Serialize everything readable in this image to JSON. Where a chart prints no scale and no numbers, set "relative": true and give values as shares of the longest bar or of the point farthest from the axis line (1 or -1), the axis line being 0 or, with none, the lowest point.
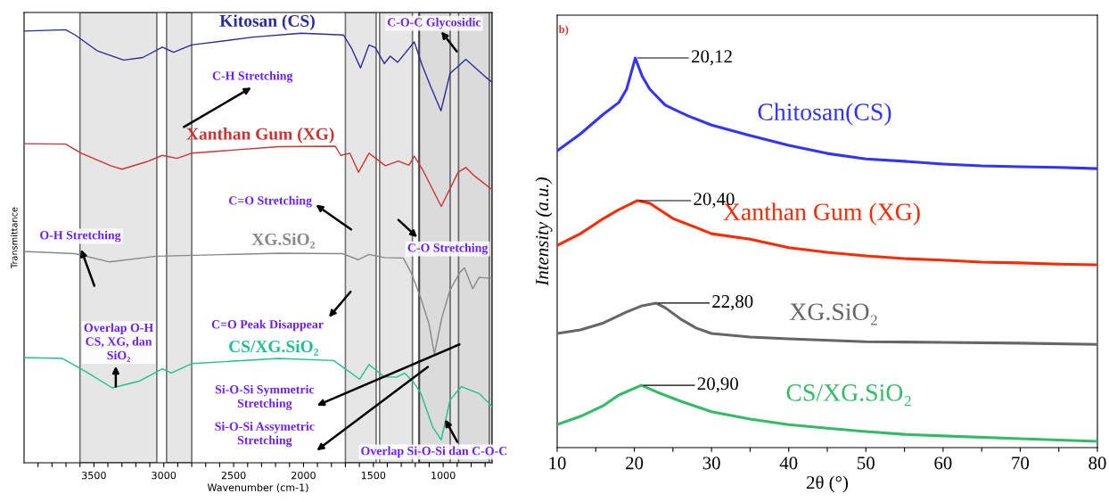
{
  "chart_data": [
    {
      "type": "line",
      "relative": true,
      "xlabel": "Wavenumber (cm-1)",
      "ylabel": "Transmittance",
      "xlim": [
        4000,
        650
      ],
      "xticks": [
        {
          "value": 3900,
          "label": null
        },
        {
          "value": 3800,
          "label": null
        },
        {
          "value": 3700,
          "label": null
        },
        {
          "value": 3600,
          "label": null
        },
        3500,
        {
          "value": 3400,
          "label": null
        },
        {
          "value": 3300,
          "label": null
        },
        {
          "value": 3200,
          "label": null
        },
        {
          "value": 3100,
          "label": null
        },
        3000,
        {
          "value": 2900,
          "label": null
        },
        {
          "value": 2800,
          "label": null
        },
        {
          "value": 2700,
          "label": null
        },
        {
          "value": 2600,
          "label": null
        },
        2500,
        {
          "value": 2400,
          "label": null
        },
        {
          "value": 2300,
          "label": null
        },
        {
          "value": 2200,
          "label": null
        },
        {
          "value": 2100,
          "label": null
        },
        2000,
        {
          "value": 1900,
          "label": null
        },
        {
          "value": 1800,
          "label": null
        },
        {
          "value": 1700,
          "label": null
        },
        {
          "value": 1600,
          "label": null
        },
        1500,
        {
          "value": 1400,
          "label": null
        },
        {
          "value": 1300,
          "label": null
        },
        {
          "value": 1200,
          "label": null
        },
        {
          "value": 1100,
          "label": null
        },
        1000,
        {
          "value": 900,
          "label": null
        },
        {
          "value": 800,
          "label": null
        },
        {
          "value": 700,
          "label": null
        }
      ],
      "tick_labels": "x",
      "grid": false,
      "legend": false,
      "series": [
        {
          "name": "Kitosan (CS)",
          "color": "#2b2b9c",
          "x": [
            4000,
            3703,
            3634,
            3474,
            3287,
            3150,
            3010,
            2930,
            2801,
            2362,
            2016,
            1714,
            1657,
            1592,
            1531,
            1486,
            1421,
            1379,
            1326,
            1207,
            1149,
            1091,
            1016,
            951,
            838,
            697,
            650
          ],
          "values": [
            0.997,
            1.0,
            0.988,
            0.951,
            0.93,
            0.936,
            0.96,
            0.948,
            0.965,
            0.983,
            0.992,
            0.988,
            0.958,
            0.912,
            0.965,
            0.959,
            0.922,
            0.939,
            0.925,
            0.972,
            0.917,
            0.87,
            0.813,
            0.899,
            0.932,
            0.891,
            0.879
          ]
        },
        {
          "name": "Xanthan Gum (XG)",
          "color": "#cc3333",
          "x": [
            4000,
            3703,
            3590,
            3380,
            3299,
            3125,
            3010,
            2906,
            2801,
            2177,
            1772,
            1733,
            1668,
            1606,
            1531,
            1414,
            1321,
            1245,
            1207,
            1149,
            1014,
            893,
            838,
            782,
            650
          ],
          "values": [
            0.737,
            0.736,
            0.715,
            0.686,
            0.678,
            0.695,
            0.71,
            0.703,
            0.715,
            0.73,
            0.731,
            0.71,
            0.715,
            0.671,
            0.715,
            0.686,
            0.697,
            0.687,
            0.708,
            0.678,
            0.592,
            0.671,
            0.682,
            0.664,
            0.631
          ]
        },
        {
          "name": "XG.SiO₂",
          "color": "#888888",
          "x": [
            4000,
            3634,
            3391,
            3056,
            2166,
            1721,
            1610,
            1531,
            1421,
            1286,
            1229,
            1160,
            1102,
            1063,
            1009,
            951,
            882,
            848,
            789,
            743,
            650
          ],
          "values": [
            0.488,
            0.483,
            0.464,
            0.477,
            0.484,
            0.483,
            0.469,
            0.481,
            0.474,
            0.473,
            0.439,
            0.38,
            0.321,
            0.251,
            0.336,
            0.399,
            0.439,
            0.45,
            0.402,
            0.428,
            0.426
          ]
        },
        {
          "name": "CS/XG.SiO₂",
          "color": "#1fc08f",
          "x": [
            4000,
            3727,
            3565,
            3369,
            3171,
            3010,
            2946,
            2801,
            2177,
            1784,
            1714,
            1599,
            1531,
            1421,
            1333,
            1275,
            1207,
            1160,
            1074,
            1014,
            951,
            870,
            743,
            650
          ],
          "values": [
            0.243,
            0.241,
            0.212,
            0.173,
            0.189,
            0.217,
            0.207,
            0.229,
            0.241,
            0.236,
            0.22,
            0.193,
            0.227,
            0.198,
            0.198,
            0.207,
            0.184,
            0.16,
            0.082,
            0.053,
            0.145,
            0.176,
            0.16,
            0.13
          ]
        }
      ],
      "bands": [
        {
          "axis": "x",
          "from": 3600,
          "to": 3050,
          "color": "#d3d3d3"
        },
        {
          "axis": "x",
          "from": 2980,
          "to": 2800,
          "color": "#d3d3d3"
        },
        {
          "axis": "x",
          "from": 1700,
          "to": 1480,
          "color": "#d3d3d3"
        },
        {
          "axis": "x",
          "from": 1455,
          "to": 1220,
          "color": "#d3d3d3"
        },
        {
          "axis": "x",
          "from": 1175,
          "to": 650,
          "color": "#d3d3d3"
        },
        {
          "axis": "x",
          "from": 1170,
          "to": 950,
          "color": "#d3d3d3"
        },
        {
          "axis": "x",
          "from": 890,
          "to": 670,
          "color": "#d3d3d3"
        }
      ],
      "annotations": [
        "C-O-C Glycosidic",
        "C-H Stretching",
        "C=O Stretching",
        "C-O Stretching",
        "O-H Stretching",
        "Overlap O-H\nCS, XG, dan\nSiO₂",
        "C=O Peak Disappear",
        "Si-O-Si Symmetric\nStretching",
        "Si-O-Si Assymetric\nStretching",
        "Overlap Si-O-Si dan C-O-C"
      ]
    },
    {
      "type": "line",
      "relative": true,
      "xlabel": "2θ (°)",
      "ylabel": "Intensity (a.u.)",
      "xlim": [
        10,
        80
      ],
      "xticks": [
        10,
        {
          "value": 15,
          "label": null
        },
        20,
        {
          "value": 25,
          "label": null
        },
        30,
        {
          "value": 35,
          "label": null
        },
        40,
        {
          "value": 45,
          "label": null
        },
        50,
        {
          "value": 55,
          "label": null
        },
        60,
        {
          "value": 65,
          "label": null
        },
        70,
        {
          "value": 75,
          "label": null
        },
        80
      ],
      "tick_labels": "x",
      "grid": false,
      "legend": false,
      "series": [
        {
          "name": "Chitosan(CS)",
          "color": "#3333ff",
          "x": [
            10,
            13,
            16,
            18,
            19,
            20.12,
            21,
            22,
            24,
            27,
            30,
            35,
            40,
            45,
            50,
            55,
            60,
            65,
            70,
            75,
            80
          ],
          "values": [
            0.762,
            0.805,
            0.856,
            0.886,
            0.92,
            1.0,
            0.954,
            0.92,
            0.879,
            0.851,
            0.828,
            0.801,
            0.776,
            0.755,
            0.741,
            0.735,
            0.728,
            0.723,
            0.721,
            0.719,
            0.716
          ]
        },
        {
          "name": "Xanthan Gum (XG)",
          "color": "#ff2a00",
          "x": [
            10,
            13,
            16,
            18,
            20.4,
            22,
            25,
            28,
            30,
            35,
            40,
            45,
            50,
            55,
            60,
            65,
            70,
            75,
            80
          ],
          "values": [
            0.519,
            0.549,
            0.588,
            0.611,
            0.634,
            0.627,
            0.588,
            0.565,
            0.549,
            0.535,
            0.513,
            0.501,
            0.492,
            0.485,
            0.481,
            0.476,
            0.474,
            0.471,
            0.469
          ]
        },
        {
          "name": "XG.SiO₂",
          "color": "#666666",
          "x": [
            10,
            13,
            16,
            19,
            21,
            22.8,
            24,
            26,
            28,
            30,
            35,
            40,
            50,
            60,
            70,
            80
          ],
          "values": [
            0.293,
            0.302,
            0.32,
            0.348,
            0.364,
            0.371,
            0.359,
            0.33,
            0.307,
            0.293,
            0.284,
            0.279,
            0.272,
            0.27,
            0.268,
            0.265
          ]
        },
        {
          "name": "CS/XG.SiO₂",
          "color": "#33bb66",
          "x": [
            10,
            13,
            16,
            18,
            20.9,
            23,
            26,
            30,
            35,
            40,
            45,
            50,
            55,
            60,
            70,
            80
          ],
          "values": [
            0.059,
            0.08,
            0.108,
            0.135,
            0.16,
            0.142,
            0.119,
            0.092,
            0.073,
            0.059,
            0.05,
            0.041,
            0.034,
            0.03,
            0.023,
            0.016
          ]
        }
      ],
      "annotations": [
        "b)",
        {
          "text": "20,12",
          "x": 20.12,
          "y": 1.0
        },
        {
          "text": "20,40",
          "x": 20.4,
          "y": 0.634
        },
        {
          "text": "22,80",
          "x": 22.8,
          "y": 0.371
        },
        {
          "text": "20,90",
          "x": 20.9,
          "y": 0.16
        }
      ]
    }
  ]
}
